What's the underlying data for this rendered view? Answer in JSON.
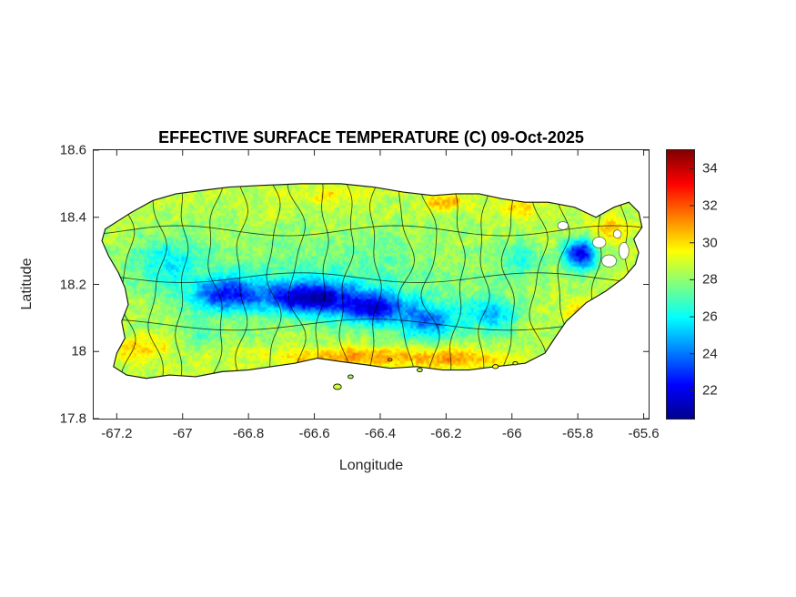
{
  "chart_data": {
    "type": "heatmap",
    "title": "EFFECTIVE SURFACE TEMPERATURE (C) 09-Oct-2025",
    "xlabel": "Longitude",
    "ylabel": "Latitude",
    "region": "Puerto Rico",
    "xlim": [
      -67.27,
      -65.585
    ],
    "ylim": [
      17.8,
      18.6
    ],
    "xticks": [
      -67.2,
      -67,
      -66.8,
      -66.6,
      -66.4,
      -66.2,
      -66,
      -65.8,
      -65.6
    ],
    "xtick_labels": [
      "-67.2",
      "-67",
      "-66.8",
      "-66.6",
      "-66.4",
      "-66.2",
      "-66",
      "-65.8",
      "-65.6"
    ],
    "yticks": [
      17.8,
      18,
      18.2,
      18.4,
      18.6
    ],
    "ytick_labels": [
      "17.8",
      "18",
      "18.2",
      "18.4",
      "18.6"
    ],
    "grid": false,
    "colorbar": {
      "min": 20.5,
      "max": 35,
      "ticks": [
        22,
        24,
        26,
        28,
        30,
        32,
        34
      ],
      "tick_labels": [
        "22",
        "24",
        "26",
        "28",
        "30",
        "32",
        "34"
      ],
      "colormap": "jet",
      "stops": [
        [
          0.0,
          0,
          0,
          143
        ],
        [
          0.125,
          0,
          0,
          255
        ],
        [
          0.375,
          0,
          255,
          255
        ],
        [
          0.625,
          255,
          255,
          0
        ],
        [
          0.875,
          255,
          0,
          0
        ],
        [
          1.0,
          128,
          0,
          0
        ]
      ]
    },
    "island_outline": [
      [
        -67.155,
        18.415
      ],
      [
        -67.09,
        18.45
      ],
      [
        -67.02,
        18.47
      ],
      [
        -66.94,
        18.48
      ],
      [
        -66.86,
        18.49
      ],
      [
        -66.76,
        18.495
      ],
      [
        -66.64,
        18.5
      ],
      [
        -66.52,
        18.5
      ],
      [
        -66.42,
        18.49
      ],
      [
        -66.33,
        18.475
      ],
      [
        -66.24,
        18.465
      ],
      [
        -66.17,
        18.47
      ],
      [
        -66.1,
        18.47
      ],
      [
        -66.03,
        18.455
      ],
      [
        -65.96,
        18.445
      ],
      [
        -65.89,
        18.445
      ],
      [
        -65.81,
        18.43
      ],
      [
        -65.745,
        18.4
      ],
      [
        -65.69,
        18.43
      ],
      [
        -65.645,
        18.445
      ],
      [
        -65.615,
        18.415
      ],
      [
        -65.605,
        18.37
      ],
      [
        -65.63,
        18.335
      ],
      [
        -65.615,
        18.295
      ],
      [
        -65.625,
        18.26
      ],
      [
        -65.66,
        18.22
      ],
      [
        -65.715,
        18.18
      ],
      [
        -65.775,
        18.145
      ],
      [
        -65.835,
        18.09
      ],
      [
        -65.87,
        18.04
      ],
      [
        -65.9,
        17.995
      ],
      [
        -65.96,
        17.965
      ],
      [
        -66.05,
        17.955
      ],
      [
        -66.13,
        17.945
      ],
      [
        -66.21,
        17.945
      ],
      [
        -66.29,
        17.955
      ],
      [
        -66.37,
        17.95
      ],
      [
        -66.44,
        17.96
      ],
      [
        -66.52,
        17.97
      ],
      [
        -66.59,
        17.98
      ],
      [
        -66.66,
        17.965
      ],
      [
        -66.73,
        17.955
      ],
      [
        -66.8,
        17.945
      ],
      [
        -66.88,
        17.94
      ],
      [
        -66.96,
        17.925
      ],
      [
        -67.04,
        17.93
      ],
      [
        -67.11,
        17.92
      ],
      [
        -67.17,
        17.93
      ],
      [
        -67.21,
        17.955
      ],
      [
        -67.2,
        17.995
      ],
      [
        -67.175,
        18.04
      ],
      [
        -67.185,
        18.09
      ],
      [
        -67.165,
        18.14
      ],
      [
        -67.175,
        18.19
      ],
      [
        -67.195,
        18.235
      ],
      [
        -67.225,
        18.285
      ],
      [
        -67.245,
        18.33
      ],
      [
        -67.235,
        18.365
      ],
      [
        -67.195,
        18.39
      ]
    ],
    "islets": [
      {
        "lon": -66.53,
        "lat": 17.895,
        "r": 0.012
      },
      {
        "lon": -66.49,
        "lat": 17.925,
        "r": 0.008
      },
      {
        "lon": -66.37,
        "lat": 17.975,
        "r": 0.006
      },
      {
        "lon": -66.28,
        "lat": 17.945,
        "r": 0.008
      },
      {
        "lon": -66.05,
        "lat": 17.955,
        "r": 0.009
      },
      {
        "lon": -65.99,
        "lat": 17.965,
        "r": 0.007
      }
    ],
    "cloud_gaps": [
      {
        "lon": -65.735,
        "lat": 18.325,
        "rx": 0.02,
        "ry": 0.016
      },
      {
        "lon": -65.705,
        "lat": 18.27,
        "rx": 0.022,
        "ry": 0.018
      },
      {
        "lon": -65.66,
        "lat": 18.3,
        "rx": 0.015,
        "ry": 0.025
      },
      {
        "lon": -65.68,
        "lat": 18.35,
        "rx": 0.012,
        "ry": 0.012
      },
      {
        "lon": -65.845,
        "lat": 18.375,
        "rx": 0.016,
        "ry": 0.012
      }
    ],
    "field": {
      "base_temp": 28.6,
      "cool_sources": [
        {
          "lon": -66.87,
          "lat": 18.17,
          "amp": 5.0,
          "sx": 0.1,
          "sy": 0.05
        },
        {
          "lon": -66.62,
          "lat": 18.16,
          "amp": 6.5,
          "sx": 0.13,
          "sy": 0.045
        },
        {
          "lon": -66.42,
          "lat": 18.13,
          "amp": 5.5,
          "sx": 0.1,
          "sy": 0.045
        },
        {
          "lon": -66.25,
          "lat": 18.09,
          "amp": 4.0,
          "sx": 0.09,
          "sy": 0.05
        },
        {
          "lon": -66.06,
          "lat": 18.11,
          "amp": 3.2,
          "sx": 0.07,
          "sy": 0.05
        },
        {
          "lon": -65.79,
          "lat": 18.29,
          "amp": 6.5,
          "sx": 0.05,
          "sy": 0.045
        },
        {
          "lon": -66.55,
          "lat": 18.2,
          "amp": 1.6,
          "sx": 0.5,
          "sy": 0.15
        },
        {
          "lon": -67.05,
          "lat": 18.27,
          "amp": 2.2,
          "sx": 0.11,
          "sy": 0.08
        },
        {
          "lon": -66.95,
          "lat": 18.06,
          "amp": 1.2,
          "sx": 0.06,
          "sy": 0.04
        },
        {
          "lon": -65.97,
          "lat": 18.28,
          "amp": 2.0,
          "sx": 0.06,
          "sy": 0.05
        }
      ],
      "warm_sources": [
        {
          "lon": -66.45,
          "lat": 17.985,
          "amp": 2.4,
          "sx": 0.28,
          "sy": 0.03
        },
        {
          "lon": -66.15,
          "lat": 17.975,
          "amp": 1.8,
          "sx": 0.12,
          "sy": 0.03
        },
        {
          "lon": -67.13,
          "lat": 18.01,
          "amp": 1.6,
          "sx": 0.09,
          "sy": 0.04
        },
        {
          "lon": -66.2,
          "lat": 18.445,
          "amp": 2.0,
          "sx": 0.07,
          "sy": 0.025
        },
        {
          "lon": -65.98,
          "lat": 18.43,
          "amp": 1.6,
          "sx": 0.07,
          "sy": 0.03
        },
        {
          "lon": -66.55,
          "lat": 18.46,
          "amp": 1.2,
          "sx": 0.12,
          "sy": 0.03
        },
        {
          "lon": -65.7,
          "lat": 18.36,
          "amp": 1.8,
          "sx": 0.05,
          "sy": 0.035
        },
        {
          "lon": -65.79,
          "lat": 18.12,
          "amp": 1.8,
          "sx": 0.05,
          "sy": 0.04
        }
      ],
      "noise": {
        "amp_fine": 0.7,
        "amp_coarse": 0.5,
        "scale_fine": 0.008,
        "scale_coarse": 0.025
      }
    },
    "boundaries": {
      "vertical_start": -67.17,
      "vertical_step": 0.082,
      "horizontal_lats": [
        18.08,
        18.22,
        18.36
      ]
    }
  }
}
